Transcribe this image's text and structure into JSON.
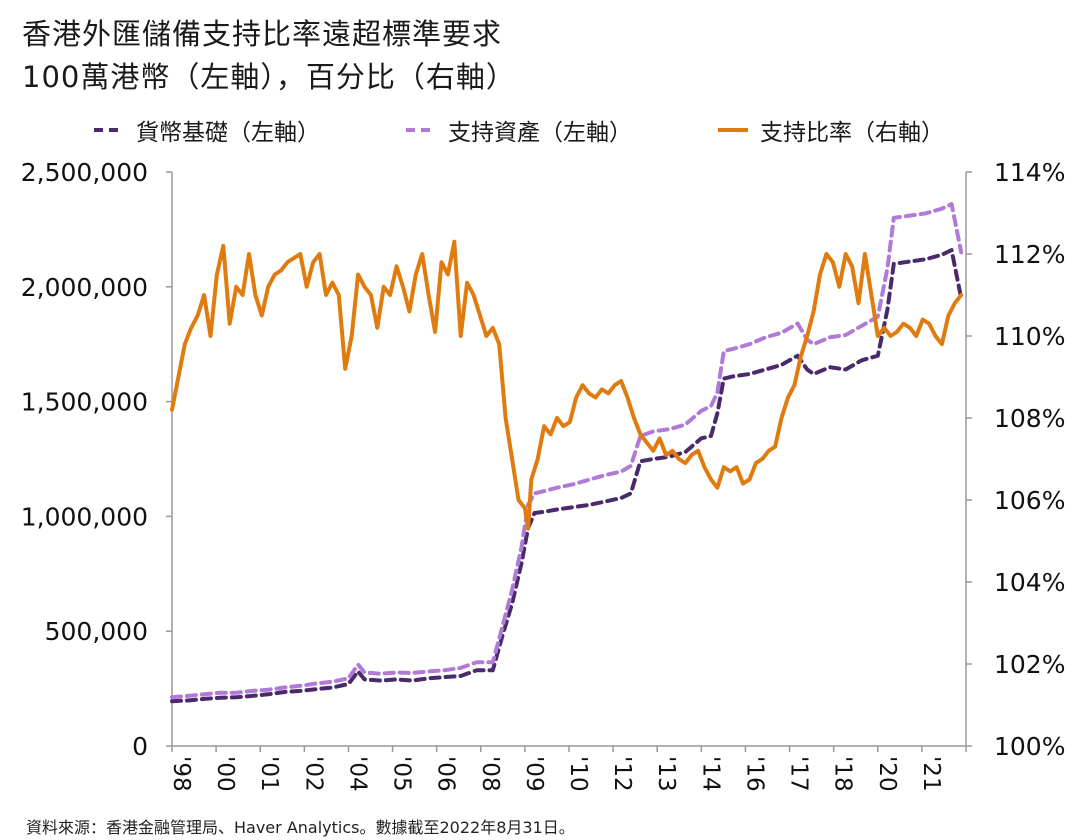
{
  "title": "香港外匯儲備支持比率遠超標準要求",
  "subtitle": "100萬港幣（左軸），百分比（右軸）",
  "source": "資料來源：香港金融管理局、Haver Analytics。數據截至2022年8月31日。",
  "colors": {
    "monetary_base": "#4b2a6b",
    "backing_assets": "#b07ad6",
    "backing_ratio": "#e07b10"
  },
  "chart_data": {
    "type": "line",
    "x_ticks": [
      "'98",
      "'00",
      "'01",
      "'02",
      "'04",
      "'05",
      "'06",
      "'08",
      "'09",
      "'10",
      "'12",
      "'13",
      "'14",
      "'16",
      "'17",
      "'18",
      "'20",
      "'21"
    ],
    "y_left": {
      "ticks": [
        "0",
        "500,000",
        "1,000,000",
        "1,500,000",
        "2,000,000",
        "2,500,000"
      ],
      "lim": [
        0,
        2500000
      ]
    },
    "y_right": {
      "ticks": [
        "100%",
        "102%",
        "104%",
        "106%",
        "108%",
        "110%",
        "112%",
        "114%"
      ],
      "lim": [
        100,
        114
      ]
    },
    "grid": false,
    "legend_position": "top",
    "series": [
      {
        "name": "貨幣基礎（左軸）",
        "axis": "left",
        "style": "dashed",
        "x": [
          1998.0,
          1998.5,
          1999.0,
          1999.5,
          2000.0,
          2000.5,
          2001.0,
          2001.5,
          2002.0,
          2002.5,
          2003.0,
          2003.5,
          2003.8,
          2004.0,
          2004.5,
          2005.0,
          2005.5,
          2006.0,
          2006.5,
          2007.0,
          2007.5,
          2008.0,
          2008.3,
          2008.6,
          2008.9,
          2009.1,
          2009.3,
          2009.6,
          2010.0,
          2010.5,
          2011.0,
          2011.5,
          2012.0,
          2012.3,
          2012.6,
          2013.0,
          2013.5,
          2014.0,
          2014.5,
          2014.8,
          2015.0,
          2015.2,
          2015.5,
          2016.0,
          2016.5,
          2017.0,
          2017.5,
          2017.8,
          2018.0,
          2018.5,
          2019.0,
          2019.5,
          2020.0,
          2020.3,
          2020.5,
          2021.0,
          2021.5,
          2022.0,
          2022.3,
          2022.6
        ],
        "values": [
          195000,
          198000,
          205000,
          210000,
          212000,
          218000,
          225000,
          235000,
          240000,
          248000,
          255000,
          270000,
          325000,
          290000,
          285000,
          290000,
          285000,
          295000,
          300000,
          305000,
          330000,
          330000,
          480000,
          620000,
          800000,
          950000,
          1015000,
          1020000,
          1030000,
          1040000,
          1050000,
          1065000,
          1080000,
          1100000,
          1240000,
          1250000,
          1260000,
          1280000,
          1340000,
          1350000,
          1450000,
          1600000,
          1610000,
          1620000,
          1640000,
          1660000,
          1700000,
          1640000,
          1620000,
          1650000,
          1640000,
          1680000,
          1700000,
          1900000,
          2100000,
          2110000,
          2120000,
          2140000,
          2160000,
          1950000
        ]
      },
      {
        "name": "支持資產（左軸）",
        "axis": "left",
        "style": "dashed",
        "x": [
          1998.0,
          1998.5,
          1999.0,
          1999.5,
          2000.0,
          2000.5,
          2001.0,
          2001.5,
          2002.0,
          2002.5,
          2003.0,
          2003.5,
          2003.8,
          2004.0,
          2004.5,
          2005.0,
          2005.5,
          2006.0,
          2006.5,
          2007.0,
          2007.5,
          2008.0,
          2008.3,
          2008.6,
          2008.9,
          2009.1,
          2009.3,
          2009.6,
          2010.0,
          2010.5,
          2011.0,
          2011.5,
          2012.0,
          2012.3,
          2012.6,
          2013.0,
          2013.5,
          2014.0,
          2014.5,
          2014.8,
          2015.0,
          2015.2,
          2015.5,
          2016.0,
          2016.5,
          2017.0,
          2017.5,
          2017.8,
          2018.0,
          2018.5,
          2019.0,
          2019.5,
          2020.0,
          2020.3,
          2020.5,
          2021.0,
          2021.5,
          2022.0,
          2022.3,
          2022.6
        ],
        "values": [
          212000,
          218000,
          225000,
          232000,
          232000,
          240000,
          245000,
          255000,
          262000,
          272000,
          280000,
          295000,
          355000,
          320000,
          315000,
          320000,
          318000,
          325000,
          330000,
          340000,
          365000,
          365000,
          520000,
          680000,
          870000,
          1050000,
          1100000,
          1110000,
          1125000,
          1140000,
          1160000,
          1180000,
          1195000,
          1220000,
          1350000,
          1370000,
          1380000,
          1400000,
          1460000,
          1480000,
          1540000,
          1720000,
          1730000,
          1750000,
          1780000,
          1800000,
          1840000,
          1770000,
          1750000,
          1780000,
          1790000,
          1830000,
          1870000,
          2080000,
          2300000,
          2310000,
          2320000,
          2340000,
          2360000,
          2150000
        ]
      },
      {
        "name": "支持比率（右軸）",
        "axis": "right",
        "style": "solid",
        "x": [
          1998.0,
          1998.2,
          1998.4,
          1998.6,
          1998.8,
          1999.0,
          1999.2,
          1999.4,
          1999.6,
          1999.8,
          2000.0,
          2000.2,
          2000.4,
          2000.6,
          2000.8,
          2001.0,
          2001.2,
          2001.4,
          2001.6,
          2001.8,
          2002.0,
          2002.2,
          2002.4,
          2002.6,
          2002.8,
          2003.0,
          2003.2,
          2003.4,
          2003.6,
          2003.8,
          2004.0,
          2004.2,
          2004.4,
          2004.6,
          2004.8,
          2005.0,
          2005.2,
          2005.4,
          2005.6,
          2005.8,
          2006.0,
          2006.2,
          2006.4,
          2006.6,
          2006.8,
          2007.0,
          2007.2,
          2007.4,
          2007.6,
          2007.8,
          2008.0,
          2008.2,
          2008.4,
          2008.6,
          2008.8,
          2009.0,
          2009.1,
          2009.2,
          2009.4,
          2009.6,
          2009.8,
          2010.0,
          2010.2,
          2010.4,
          2010.6,
          2010.8,
          2011.0,
          2011.2,
          2011.4,
          2011.6,
          2011.8,
          2012.0,
          2012.2,
          2012.4,
          2012.6,
          2012.8,
          2013.0,
          2013.2,
          2013.4,
          2013.6,
          2013.8,
          2014.0,
          2014.2,
          2014.4,
          2014.6,
          2014.8,
          2015.0,
          2015.2,
          2015.4,
          2015.6,
          2015.8,
          2016.0,
          2016.2,
          2016.4,
          2016.6,
          2016.8,
          2017.0,
          2017.2,
          2017.4,
          2017.6,
          2017.8,
          2018.0,
          2018.2,
          2018.4,
          2018.6,
          2018.8,
          2019.0,
          2019.2,
          2019.4,
          2019.6,
          2019.8,
          2020.0,
          2020.2,
          2020.4,
          2020.6,
          2020.8,
          2021.0,
          2021.2,
          2021.4,
          2021.6,
          2021.8,
          2022.0,
          2022.2,
          2022.4,
          2022.6
        ],
        "values": [
          108.2,
          109.0,
          109.8,
          110.2,
          110.5,
          111.0,
          110.0,
          111.5,
          112.2,
          110.3,
          111.2,
          111.0,
          112.0,
          111.0,
          110.5,
          111.2,
          111.5,
          111.6,
          111.8,
          111.9,
          112.0,
          111.2,
          111.8,
          112.0,
          111.0,
          111.3,
          111.0,
          109.2,
          110.0,
          111.5,
          111.2,
          111.0,
          110.2,
          111.2,
          111.0,
          111.7,
          111.2,
          110.6,
          111.5,
          112.0,
          111.0,
          110.1,
          111.8,
          111.5,
          112.3,
          110.0,
          111.3,
          111.0,
          110.5,
          110.0,
          110.2,
          109.8,
          108.0,
          107.0,
          106.0,
          105.8,
          105.3,
          106.5,
          107.0,
          107.8,
          107.6,
          108.0,
          107.8,
          107.9,
          108.5,
          108.8,
          108.6,
          108.5,
          108.7,
          108.6,
          108.8,
          108.9,
          108.5,
          108.0,
          107.6,
          107.4,
          107.2,
          107.5,
          107.1,
          107.2,
          107.0,
          106.9,
          107.1,
          107.2,
          106.8,
          106.5,
          106.3,
          106.8,
          106.7,
          106.8,
          106.4,
          106.5,
          106.9,
          107.0,
          107.2,
          107.3,
          108.0,
          108.5,
          108.8,
          109.5,
          110.0,
          110.6,
          111.5,
          112.0,
          111.8,
          111.2,
          112.0,
          111.7,
          110.8,
          112.0,
          111.0,
          110.0,
          110.2,
          110.0,
          110.1,
          110.3,
          110.2,
          110.0,
          110.4,
          110.3,
          110.0,
          109.8,
          110.5,
          110.8,
          111.0
        ]
      }
    ]
  }
}
